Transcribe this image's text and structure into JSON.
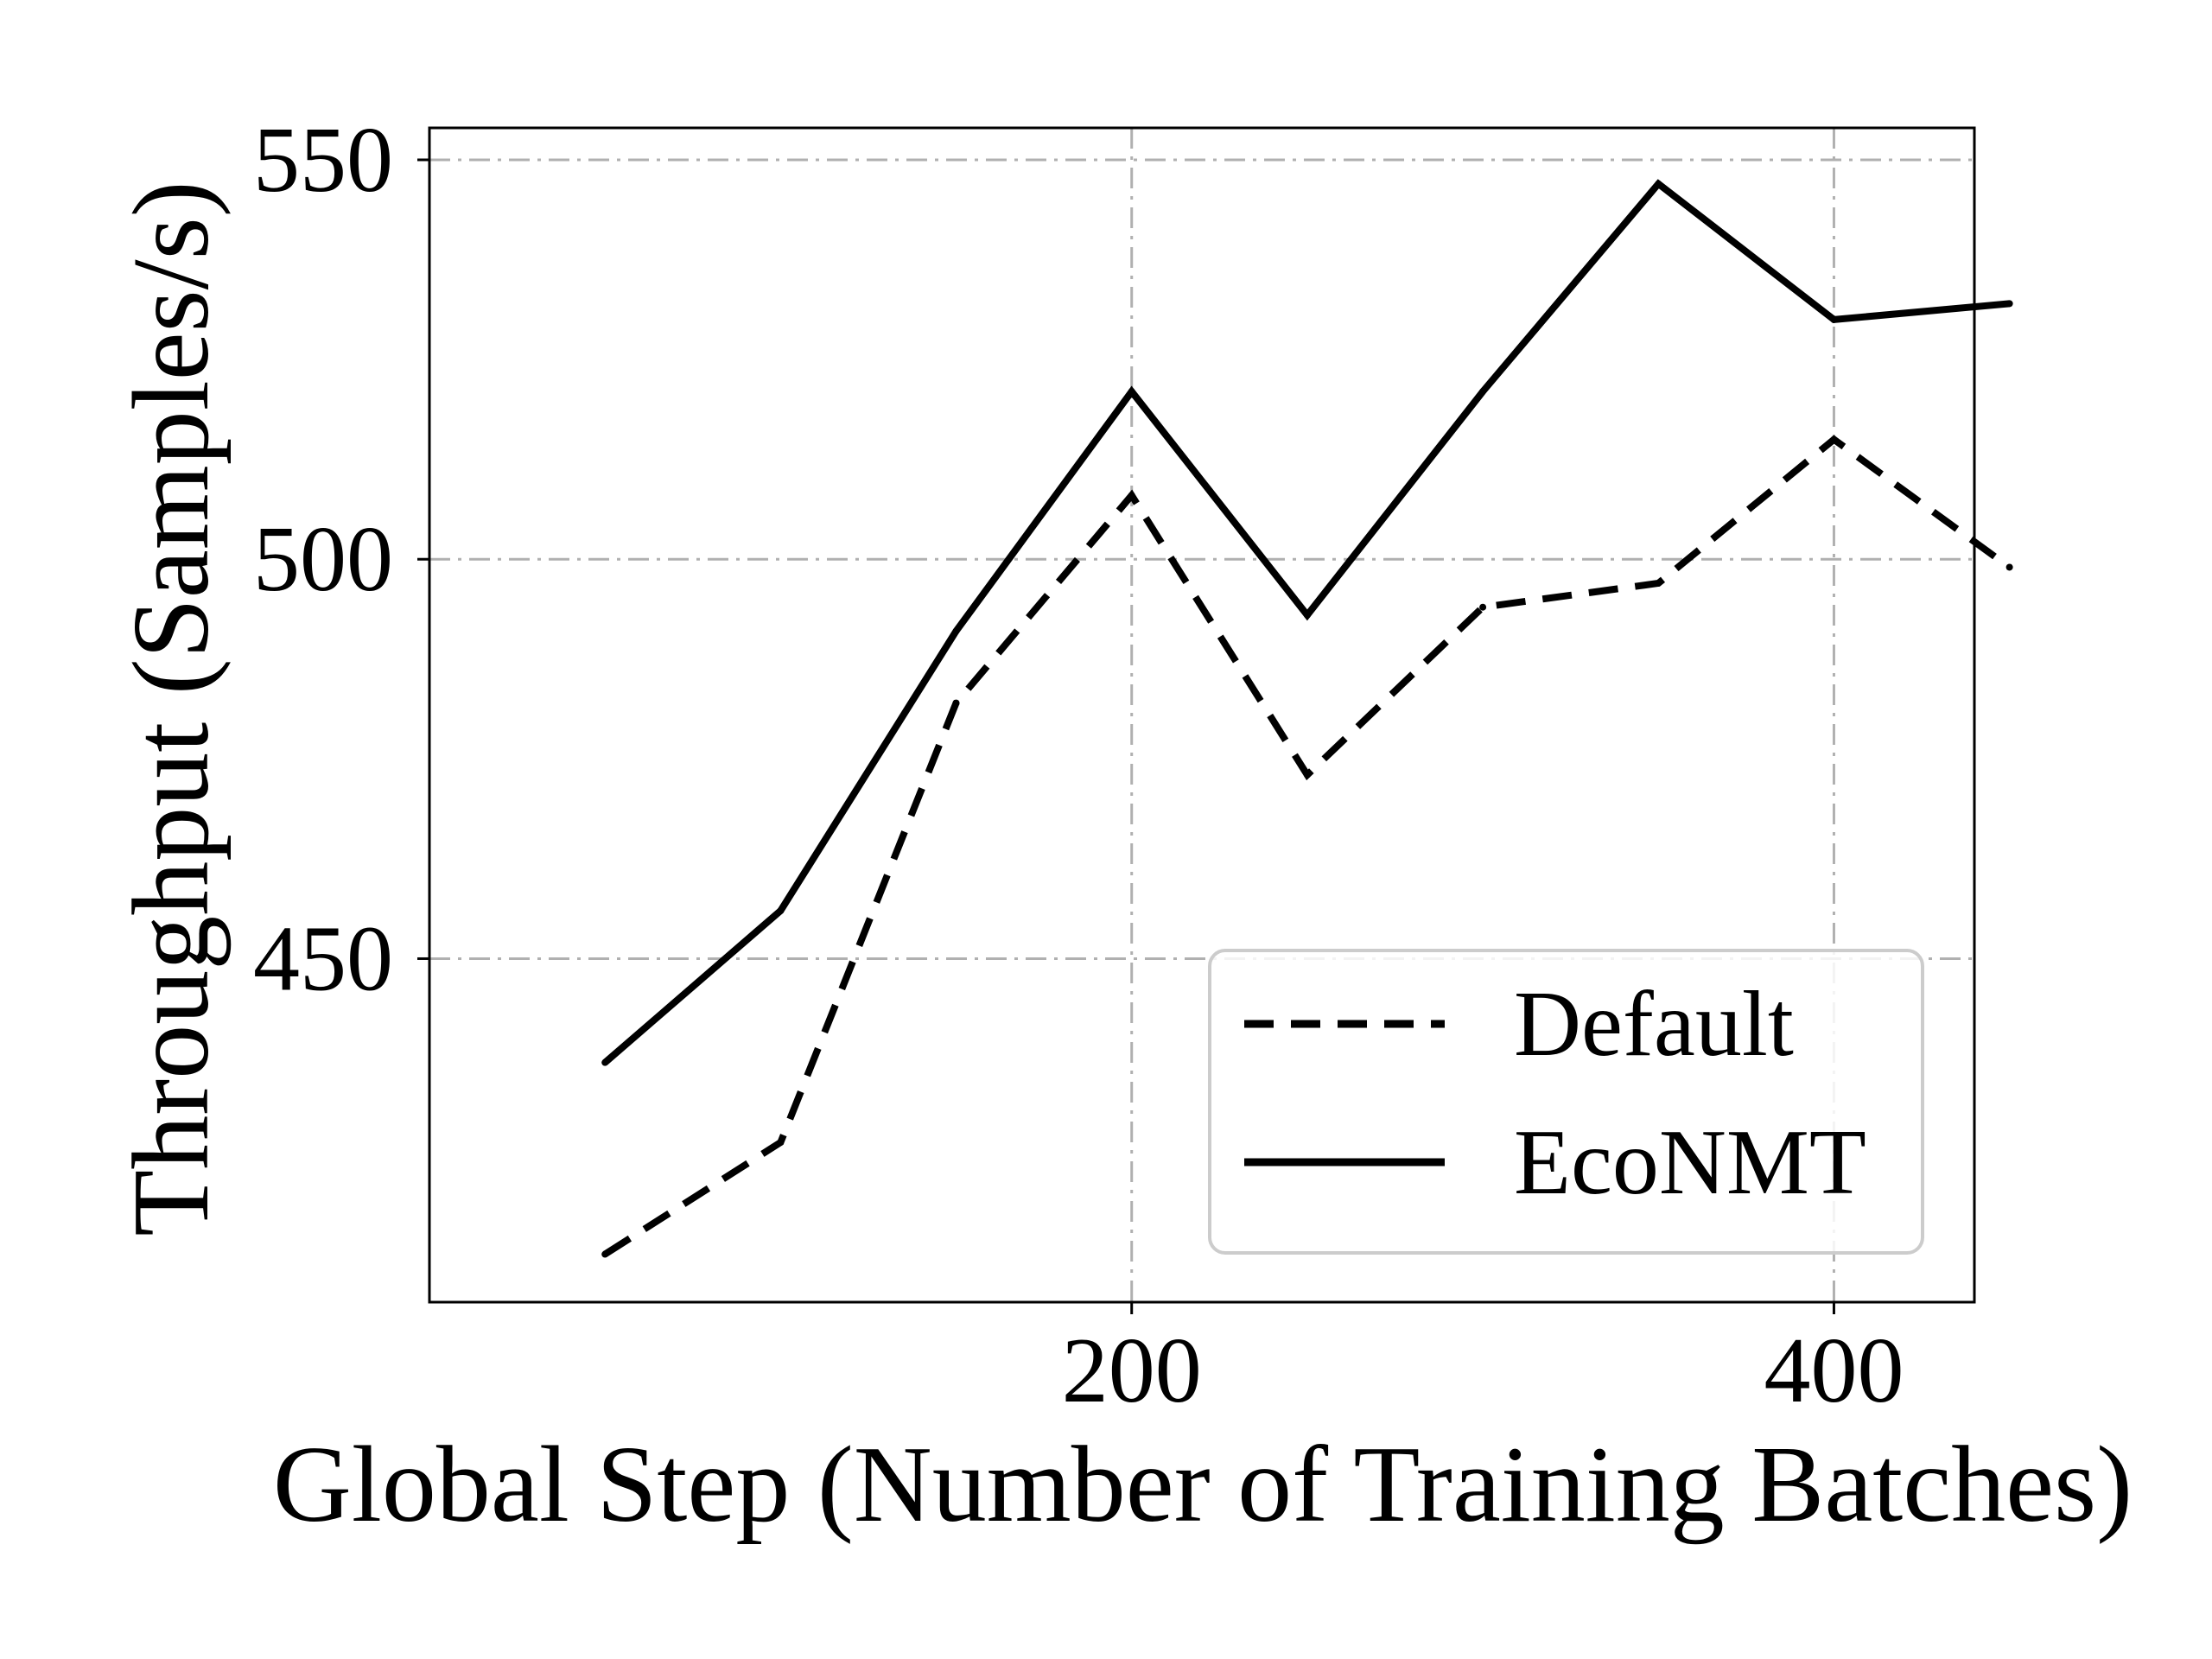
{
  "chart_data": {
    "type": "line",
    "title": "",
    "xlabel": "Global Step (Number of Training Batches)",
    "ylabel": "Throughput (Samples/s)",
    "xlim": [
      0,
      440
    ],
    "ylim": [
      407,
      554
    ],
    "xticks": [
      200,
      400
    ],
    "yticks": [
      450,
      500,
      550
    ],
    "grid": true,
    "grid_style": "dashdot",
    "legend_position": "lower-right",
    "series": [
      {
        "name": "Default",
        "line_style": "dashed",
        "x": [
          50,
          100,
          150,
          200,
          250,
          300,
          350,
          400,
          450
        ],
        "y": [
          413,
          427,
          482,
          508,
          473,
          494,
          497,
          515,
          499
        ]
      },
      {
        "name": "EcoNMT",
        "line_style": "solid",
        "x": [
          50,
          100,
          150,
          200,
          250,
          300,
          350,
          400,
          450
        ],
        "y": [
          437,
          456,
          491,
          521,
          493,
          521,
          547,
          530,
          532
        ]
      }
    ]
  },
  "colors": {
    "line": "#000000",
    "grid": "#b0b0b0",
    "axes": "#000000",
    "legend_border": "#cccccc"
  }
}
